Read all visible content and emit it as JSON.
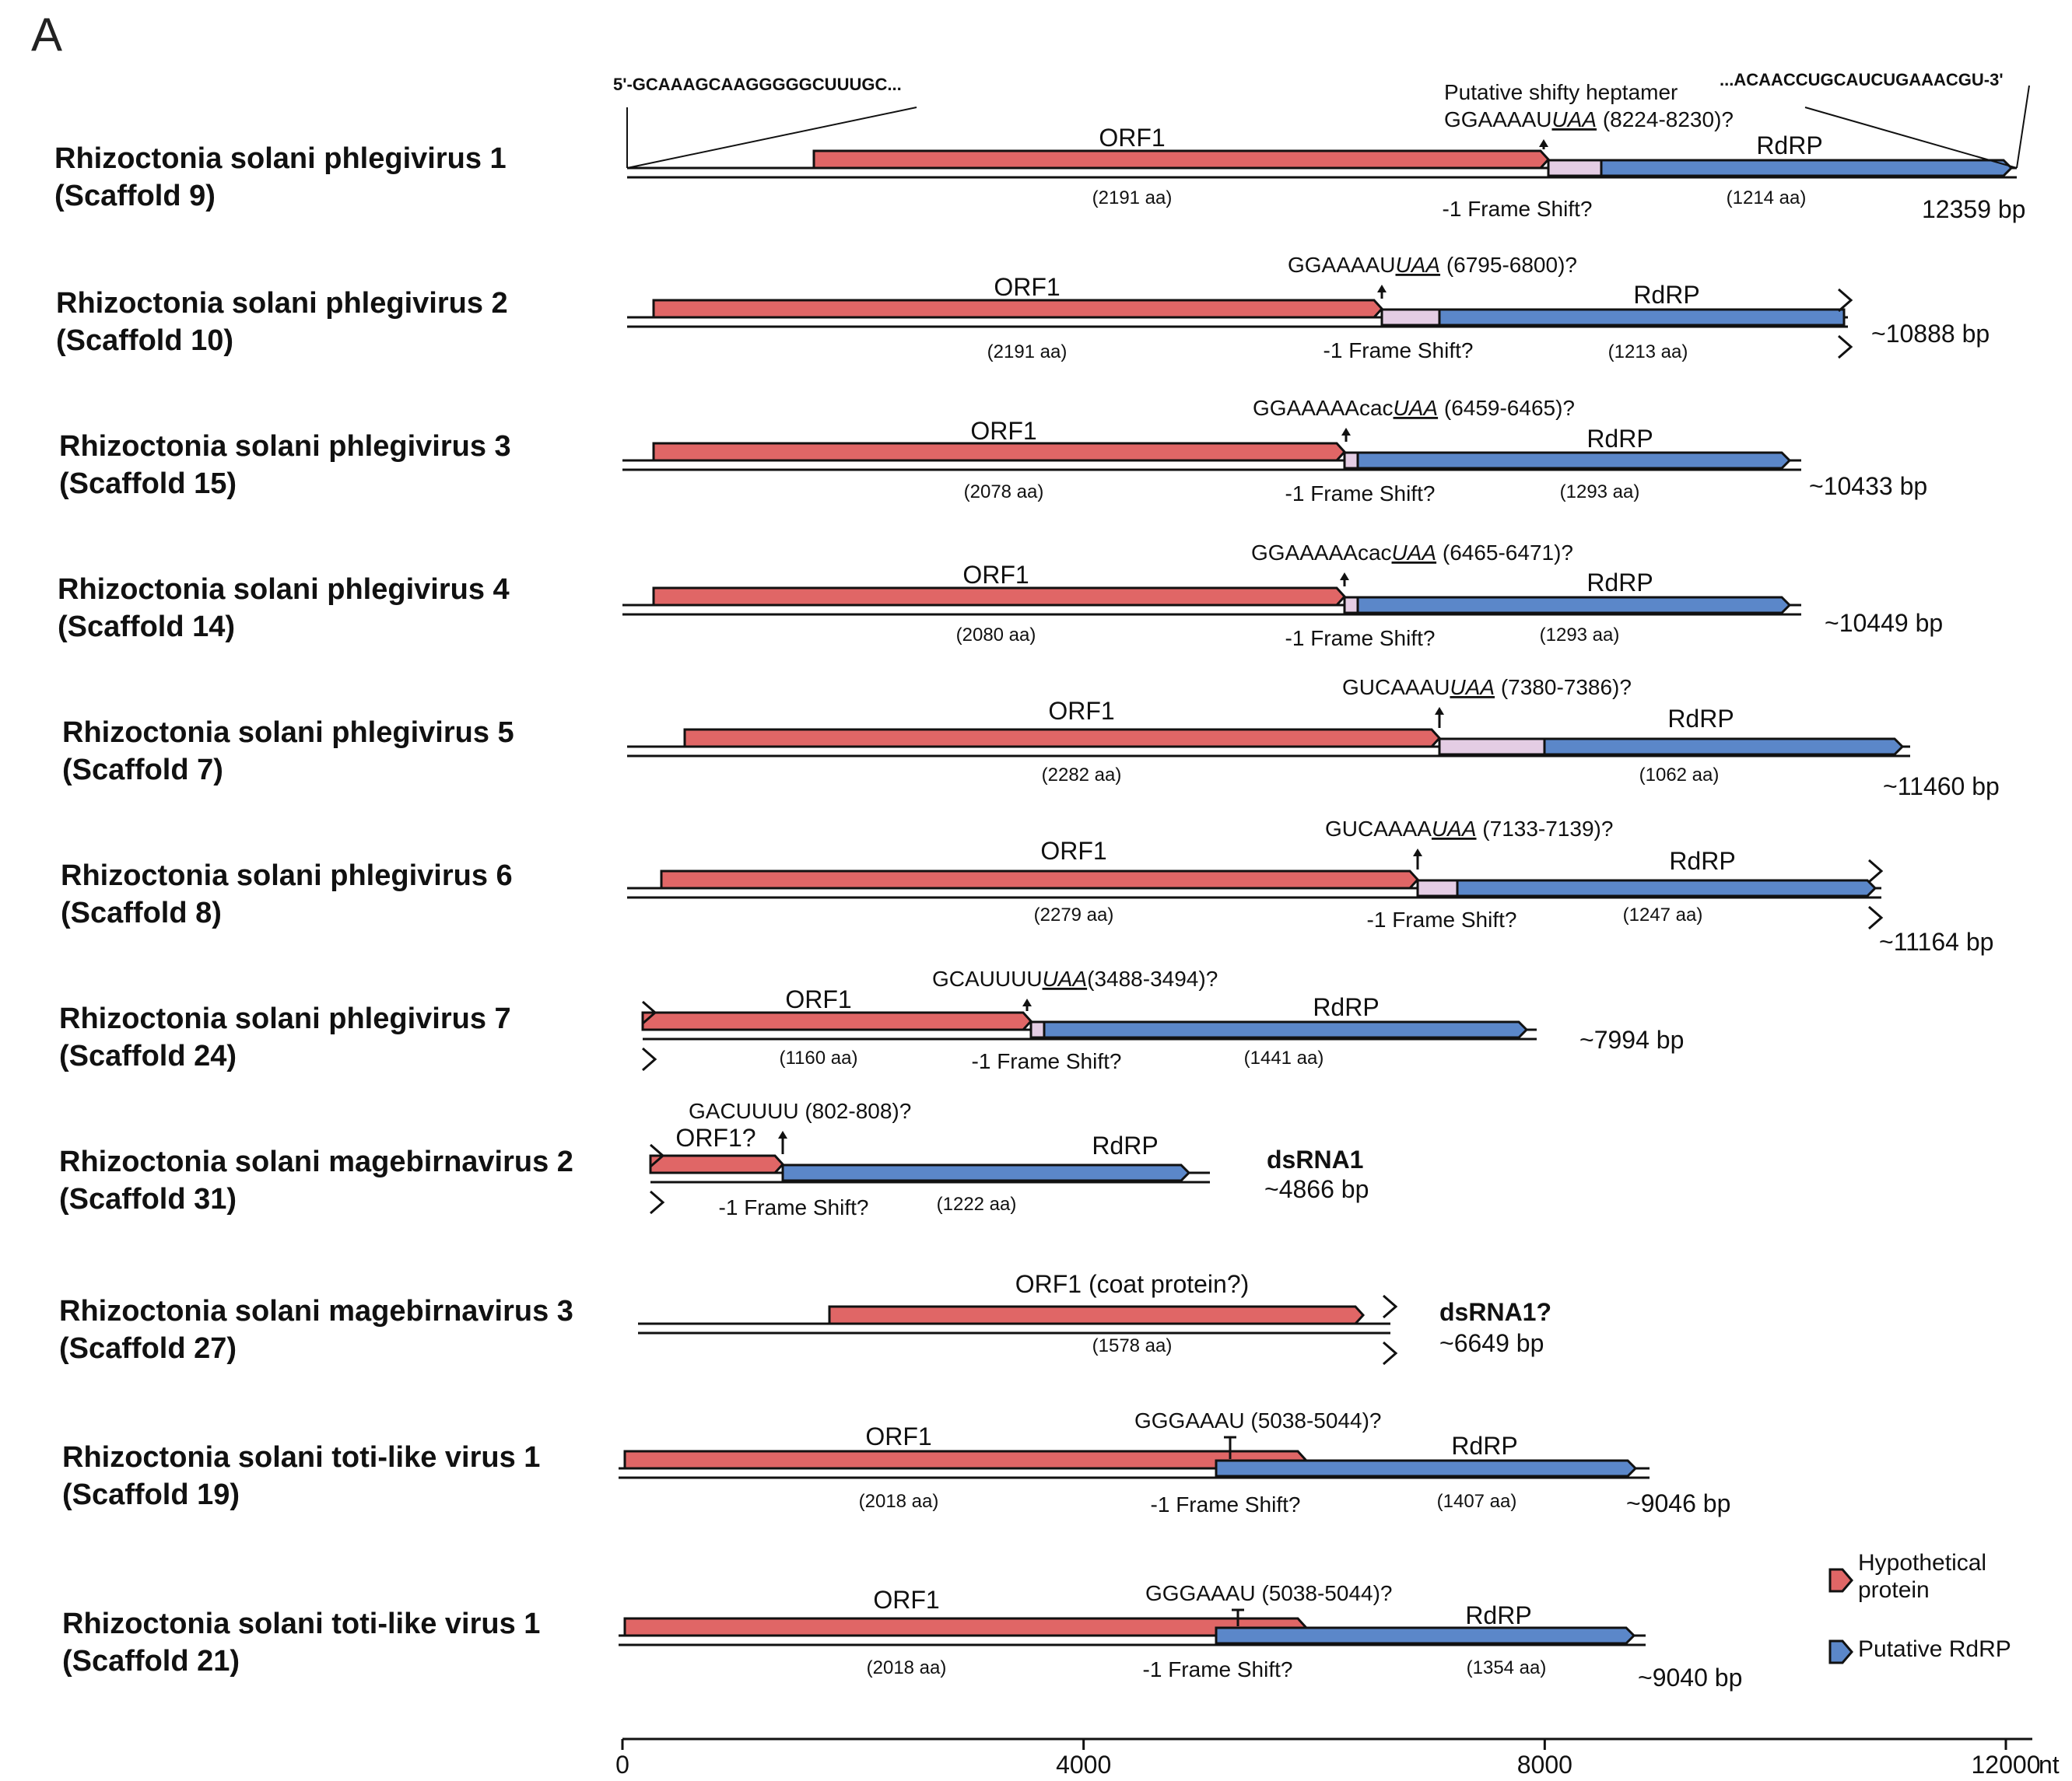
{
  "panel_label": "A",
  "colors": {
    "orf": "#e06666",
    "rdrp": "#5b87c9",
    "frameshift": "#e4cde4",
    "outline": "#111111"
  },
  "viruses": [
    {
      "name": "Rhizoctonia solani phlegivirus 1",
      "scaffold": "(Scaffold 9)",
      "orf1_label": "ORF1",
      "orf1_aa": "(2191 aa)",
      "rdrp_label": "RdRP",
      "rdrp_aa": "(1214 aa)",
      "frameshift_label": "-1 Frame Shift?",
      "size_label": "12359 bp",
      "shifty_title": "Putative shifty heptamer",
      "heptamer": "GGAAAAU",
      "heptamer_stop": "UAA",
      "heptamer_pos": " (8224-8230)?",
      "utr5": "5'-GCAAAGCAAGGGGGCUUUGC...",
      "utr3": "...ACAACCUGCAUCUGAAACGU-3'"
    },
    {
      "name": "Rhizoctonia solani phlegivirus 2",
      "scaffold": "(Scaffold 10)",
      "orf1_label": "ORF1",
      "orf1_aa": "(2191 aa)",
      "rdrp_label": "RdRP",
      "rdrp_aa": "(1213 aa)",
      "frameshift_label": "-1 Frame Shift?",
      "size_label": "~10888 bp",
      "heptamer": "GGAAAAU",
      "heptamer_stop": "UAA",
      "heptamer_pos": " (6795-6800)?"
    },
    {
      "name": "Rhizoctonia solani phlegivirus 3",
      "scaffold": "(Scaffold 15)",
      "orf1_label": "ORF1",
      "orf1_aa": "(2078 aa)",
      "rdrp_label": "RdRP",
      "rdrp_aa": "(1293 aa)",
      "frameshift_label": "-1 Frame Shift?",
      "size_label": "~10433 bp",
      "heptamer": "GGAAAAAcac",
      "heptamer_stop": "UAA",
      "heptamer_pos": " (6459-6465)?"
    },
    {
      "name": "Rhizoctonia solani phlegivirus 4",
      "scaffold": "(Scaffold 14)",
      "orf1_label": "ORF1",
      "orf1_aa": "(2080 aa)",
      "rdrp_label": "RdRP",
      "rdrp_aa": "(1293 aa)",
      "frameshift_label": "-1 Frame Shift?",
      "size_label": "~10449 bp",
      "heptamer": "GGAAAAAcac",
      "heptamer_stop": "UAA",
      "heptamer_pos": "  (6465-6471)?"
    },
    {
      "name": "Rhizoctonia solani phlegivirus 5",
      "scaffold": "(Scaffold 7)",
      "orf1_label": "ORF1",
      "orf1_aa": "(2282 aa)",
      "rdrp_label": "RdRP",
      "rdrp_aa": "(1062 aa)",
      "size_label": "~11460 bp",
      "heptamer": "GUCAAAU",
      "heptamer_stop": "UAA",
      "heptamer_pos": " (7380-7386)?"
    },
    {
      "name": "Rhizoctonia solani phlegivirus 6",
      "scaffold": "(Scaffold 8)",
      "orf1_label": "ORF1",
      "orf1_aa": "(2279 aa)",
      "rdrp_label": "RdRP",
      "rdrp_aa": "(1247 aa)",
      "frameshift_label": "-1 Frame Shift?",
      "size_label": "~11164 bp",
      "heptamer": "GUCAAAA",
      "heptamer_stop": "UAA",
      "heptamer_pos": " (7133-7139)?"
    },
    {
      "name": "Rhizoctonia solani phlegivirus 7",
      "scaffold": "(Scaffold 24)",
      "orf1_label": "ORF1",
      "orf1_aa": "(1160 aa)",
      "rdrp_label": "RdRP",
      "rdrp_aa": "(1441 aa)",
      "frameshift_label": "-1 Frame Shift?",
      "size_label": "~7994 bp",
      "heptamer": "GCAUUUU",
      "heptamer_stop": "UAA",
      "heptamer_pos": "(3488-3494)?"
    },
    {
      "name": "Rhizoctonia solani magebirnavirus 2",
      "scaffold": "(Scaffold 31)",
      "orf1_label": "ORF1?",
      "rdrp_label": "RdRP",
      "rdrp_aa": "(1222 aa)",
      "frameshift_label": "-1 Frame Shift?",
      "segment_label": "dsRNA1",
      "size_label": "~4866 bp",
      "heptamer": "GACUUUU",
      "heptamer_stop": "",
      "heptamer_pos": " (802-808)?"
    },
    {
      "name": "Rhizoctonia solani magebirnavirus 3",
      "scaffold": "(Scaffold 27)",
      "orf1_label": "ORF1 (coat protein?)",
      "orf1_aa": "(1578 aa)",
      "segment_label": "dsRNA1?",
      "size_label": "~6649 bp"
    },
    {
      "name": "Rhizoctonia solani toti-like virus 1",
      "scaffold": "(Scaffold 19)",
      "orf1_label": "ORF1",
      "orf1_aa": "(2018 aa)",
      "rdrp_label": "RdRP",
      "rdrp_aa": "(1407 aa)",
      "frameshift_label": "-1 Frame Shift?",
      "size_label": "~9046 bp",
      "heptamer": "GGGAAAU",
      "heptamer_stop": "",
      "heptamer_pos": " (5038-5044)?"
    },
    {
      "name": "Rhizoctonia solani toti-like virus 1",
      "scaffold": "(Scaffold 21)",
      "orf1_label": "ORF1",
      "orf1_aa": "(2018 aa)",
      "rdrp_label": "RdRP",
      "rdrp_aa": "(1354 aa)",
      "frameshift_label": "-1 Frame Shift?",
      "size_label": "~9040 bp",
      "heptamer": "GGGAAAU",
      "heptamer_stop": "",
      "heptamer_pos": " (5038-5044)?"
    }
  ],
  "axis": {
    "ticks": [
      "0",
      "4000",
      "8000",
      "12000"
    ],
    "tick_values": [
      0,
      4000,
      8000,
      12000
    ],
    "unit": "nt"
  },
  "legend": {
    "hypothetical": "Hypothetical protein",
    "rdrp": "Putative RdRP"
  }
}
